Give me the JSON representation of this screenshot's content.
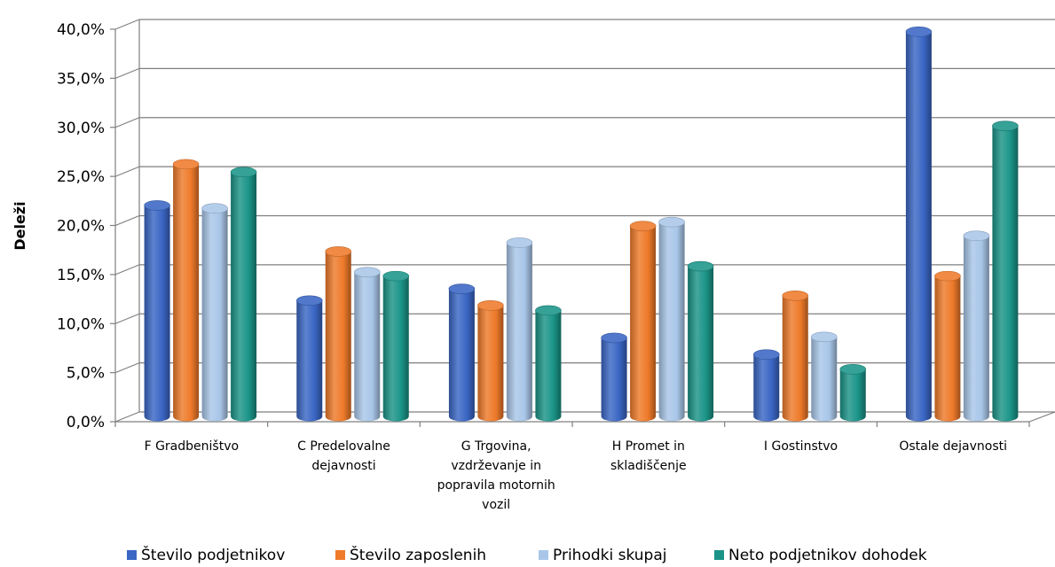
{
  "chart_data": {
    "type": "bar",
    "style": "3d-cylinder",
    "ylabel": "Deleži",
    "ylim": [
      0,
      40
    ],
    "yticks": [
      "0,0%",
      "5,0%",
      "10,0%",
      "15,0%",
      "20,0%",
      "25,0%",
      "30,0%",
      "35,0%",
      "40,0%"
    ],
    "grid": true,
    "legend_position": "bottom",
    "categories": [
      [
        "F Gradbeništvo"
      ],
      [
        "C Predelovalne",
        "dejavnosti"
      ],
      [
        "G Trgovina,",
        "vzdrževanje in",
        "popravila motornih",
        "vozil"
      ],
      [
        "H Promet in",
        "skladiščenje"
      ],
      [
        "I Gostinstvo"
      ],
      [
        "Ostale dejavnosti"
      ]
    ],
    "series": [
      {
        "name": "Število podjetnikov",
        "color": "#3a66c4",
        "values": [
          21.5,
          11.8,
          13.0,
          8.0,
          6.3,
          39.2
        ]
      },
      {
        "name": "Število zaposlenih",
        "color": "#ee7a2a",
        "values": [
          25.7,
          16.8,
          11.3,
          19.4,
          12.3,
          14.3
        ]
      },
      {
        "name": "Prihodki skupaj",
        "color": "#a9c6e8",
        "values": [
          21.2,
          14.7,
          17.7,
          19.8,
          8.1,
          18.4
        ]
      },
      {
        "name": "Neto podjetnikov dohodek",
        "color": "#1b9488",
        "values": [
          24.9,
          14.3,
          10.8,
          15.3,
          4.8,
          29.6
        ]
      }
    ]
  }
}
